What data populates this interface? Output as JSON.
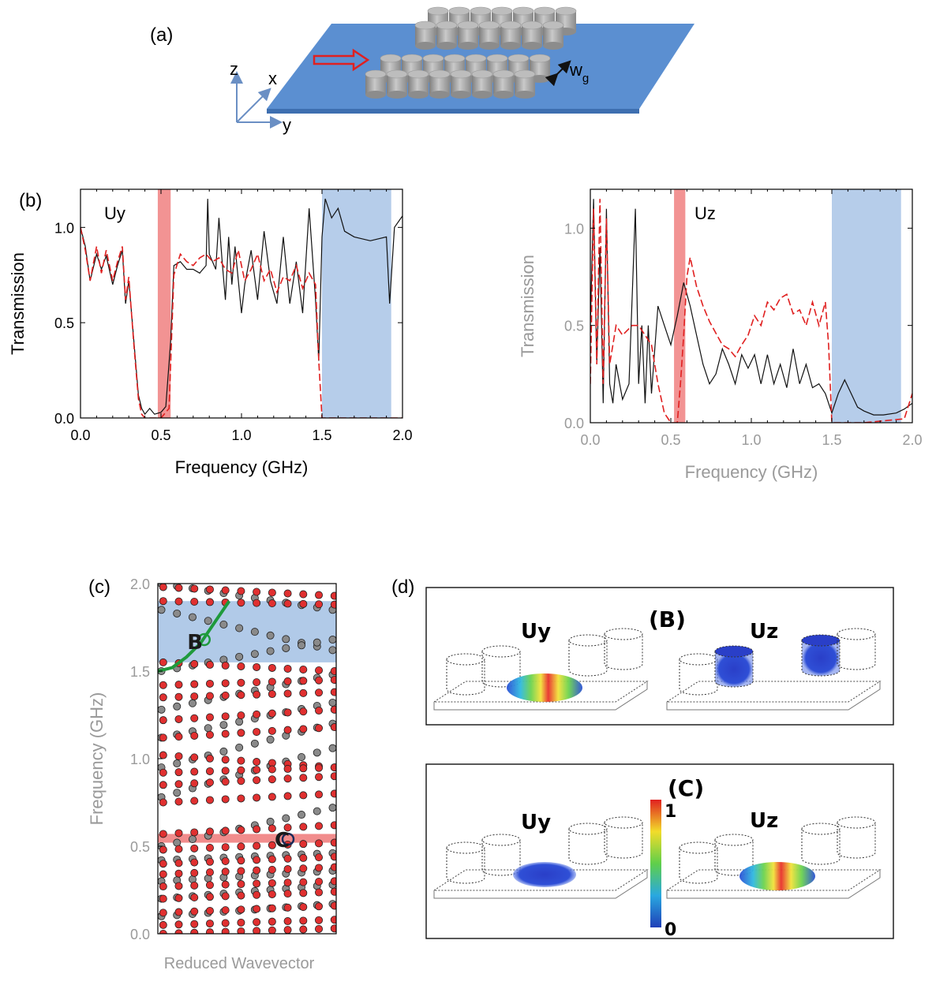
{
  "panel_labels": {
    "a": "(a)",
    "b": "(b)",
    "c": "(c)",
    "d": "(d)"
  },
  "schematic": {
    "axes": [
      "z",
      "x",
      "y"
    ],
    "gap_label": "w",
    "gap_subscript": "g"
  },
  "colors": {
    "substrate": "#5b8fd1",
    "pillar": "#a9a9a9",
    "pink_band": "#f08080",
    "blue_band": "#a9c4e6",
    "red_curve": "#e02020",
    "black_curve": "#111111",
    "green_curve": "#1f9a3c",
    "gray_text": "#9a9a9a"
  },
  "chart_data": [
    {
      "id": "uy",
      "type": "line",
      "annotation": "Uy",
      "xlabel": "Frequency (GHz)",
      "ylabel": "Transmission",
      "xlim": [
        0,
        2.0
      ],
      "ylim": [
        0,
        1.2
      ],
      "xticks": [
        "0.0",
        "0.5",
        "1.0",
        "1.5",
        "2.0"
      ],
      "yticks": [
        "0.0",
        "0.5",
        "1.0"
      ],
      "bands": [
        {
          "kind": "pink",
          "x0": 0.48,
          "x1": 0.56
        },
        {
          "kind": "blue",
          "x0": 1.5,
          "x1": 1.93
        }
      ],
      "series": [
        {
          "style": "black",
          "x": [
            0.0,
            0.03,
            0.06,
            0.1,
            0.13,
            0.16,
            0.2,
            0.23,
            0.26,
            0.28,
            0.3,
            0.33,
            0.36,
            0.38,
            0.4,
            0.43,
            0.46,
            0.5,
            0.53,
            0.56,
            0.58,
            0.62,
            0.66,
            0.7,
            0.74,
            0.78,
            0.79,
            0.8,
            0.84,
            0.86,
            0.88,
            0.9,
            0.92,
            0.94,
            0.96,
            1.0,
            1.02,
            1.06,
            1.1,
            1.14,
            1.18,
            1.22,
            1.26,
            1.3,
            1.34,
            1.38,
            1.42,
            1.46,
            1.48,
            1.5,
            1.52,
            1.56,
            1.6,
            1.64,
            1.7,
            1.8,
            1.9,
            1.92,
            1.95,
            2.0
          ],
          "y": [
            1.0,
            0.9,
            0.72,
            0.86,
            0.78,
            0.85,
            0.7,
            0.8,
            0.88,
            0.6,
            0.72,
            0.42,
            0.12,
            0.05,
            0.02,
            0.05,
            0.02,
            0.03,
            0.06,
            0.4,
            0.8,
            0.82,
            0.78,
            0.78,
            0.76,
            0.8,
            1.15,
            0.86,
            0.78,
            1.05,
            0.82,
            0.62,
            0.95,
            0.7,
            0.9,
            0.55,
            0.7,
            0.88,
            0.62,
            0.98,
            0.72,
            0.6,
            0.95,
            0.6,
            0.82,
            0.55,
            1.1,
            0.62,
            0.3,
            0.95,
            1.15,
            1.05,
            1.1,
            0.98,
            0.95,
            0.93,
            0.95,
            0.6,
            1.0,
            1.06
          ]
        },
        {
          "style": "red-dashed",
          "x": [
            0.0,
            0.03,
            0.06,
            0.1,
            0.13,
            0.16,
            0.2,
            0.23,
            0.26,
            0.28,
            0.3,
            0.33,
            0.36,
            0.38,
            0.4,
            0.45,
            0.5,
            0.55,
            0.58,
            0.62,
            0.66,
            0.7,
            0.74,
            0.78,
            0.82,
            0.86,
            0.9,
            0.94,
            0.98,
            1.02,
            1.06,
            1.1,
            1.14,
            1.18,
            1.22,
            1.26,
            1.3,
            1.34,
            1.38,
            1.42,
            1.46,
            1.48,
            1.5,
            1.6,
            1.8,
            2.0
          ],
          "y": [
            1.0,
            0.88,
            0.72,
            0.9,
            0.76,
            0.88,
            0.72,
            0.82,
            0.9,
            0.62,
            0.74,
            0.4,
            0.1,
            0.02,
            0.0,
            0.0,
            0.0,
            0.05,
            0.75,
            0.86,
            0.82,
            0.8,
            0.84,
            0.86,
            0.82,
            0.84,
            0.78,
            0.76,
            0.88,
            0.72,
            0.78,
            0.86,
            0.72,
            0.78,
            0.66,
            0.74,
            0.72,
            0.8,
            0.68,
            0.76,
            0.7,
            0.3,
            0.0,
            0.0,
            0.0,
            0.0
          ]
        }
      ]
    },
    {
      "id": "uz",
      "type": "line",
      "annotation": "Uz",
      "xlabel": "Frequency (GHz)",
      "ylabel": "Transmission",
      "xlim": [
        0,
        2.0
      ],
      "ylim": [
        0,
        1.2
      ],
      "xticks": [
        "0.0",
        "0.5",
        "1.0",
        "1.5",
        "2.0"
      ],
      "yticks": [
        "0.0",
        "0.5",
        "1.0"
      ],
      "bands": [
        {
          "kind": "pink",
          "x0": 0.52,
          "x1": 0.59
        },
        {
          "kind": "blue",
          "x0": 1.5,
          "x1": 1.93
        }
      ],
      "series": [
        {
          "style": "black",
          "x": [
            0.0,
            0.02,
            0.04,
            0.06,
            0.08,
            0.1,
            0.12,
            0.14,
            0.16,
            0.2,
            0.24,
            0.28,
            0.3,
            0.32,
            0.34,
            0.36,
            0.38,
            0.42,
            0.46,
            0.5,
            0.54,
            0.58,
            0.62,
            0.66,
            0.7,
            0.74,
            0.78,
            0.82,
            0.86,
            0.9,
            0.94,
            0.98,
            1.02,
            1.06,
            1.1,
            1.14,
            1.18,
            1.22,
            1.26,
            1.3,
            1.34,
            1.38,
            1.42,
            1.46,
            1.5,
            1.54,
            1.58,
            1.62,
            1.66,
            1.7,
            1.76,
            1.82,
            1.9,
            1.95,
            2.0
          ],
          "y": [
            0.5,
            1.15,
            0.3,
            0.9,
            0.1,
            1.1,
            0.2,
            0.1,
            0.3,
            0.12,
            0.2,
            1.1,
            0.2,
            0.5,
            0.1,
            0.5,
            0.15,
            0.6,
            0.5,
            0.4,
            0.55,
            0.72,
            0.6,
            0.45,
            0.3,
            0.2,
            0.25,
            0.38,
            0.3,
            0.2,
            0.35,
            0.28,
            0.35,
            0.2,
            0.35,
            0.2,
            0.3,
            0.18,
            0.38,
            0.2,
            0.3,
            0.18,
            0.2,
            0.15,
            0.05,
            0.15,
            0.22,
            0.15,
            0.08,
            0.06,
            0.04,
            0.04,
            0.05,
            0.07,
            0.1
          ]
        },
        {
          "style": "red-dashed",
          "x": [
            0.0,
            0.02,
            0.04,
            0.06,
            0.08,
            0.1,
            0.12,
            0.14,
            0.16,
            0.2,
            0.26,
            0.3,
            0.34,
            0.38,
            0.42,
            0.46,
            0.5,
            0.54,
            0.56,
            0.58,
            0.6,
            0.62,
            0.66,
            0.7,
            0.74,
            0.78,
            0.82,
            0.86,
            0.9,
            0.94,
            0.98,
            1.02,
            1.06,
            1.1,
            1.14,
            1.18,
            1.22,
            1.26,
            1.3,
            1.34,
            1.38,
            1.42,
            1.46,
            1.48,
            1.5,
            1.7,
            1.95,
            2.0
          ],
          "y": [
            0.2,
            1.1,
            0.3,
            1.15,
            0.2,
            1.05,
            0.3,
            0.4,
            0.5,
            0.45,
            0.5,
            0.5,
            0.45,
            0.4,
            0.2,
            0.05,
            0.0,
            0.0,
            0.2,
            0.45,
            0.75,
            0.85,
            0.7,
            0.6,
            0.52,
            0.46,
            0.4,
            0.38,
            0.34,
            0.4,
            0.45,
            0.55,
            0.5,
            0.62,
            0.58,
            0.64,
            0.66,
            0.56,
            0.58,
            0.5,
            0.62,
            0.5,
            0.62,
            0.4,
            0.0,
            0.0,
            0.02,
            0.15
          ]
        }
      ]
    },
    {
      "id": "band",
      "type": "scatter",
      "xlabel": "Reduced Wavevector",
      "ylabel": "Frequency (GHz)",
      "xlim": [
        0,
        1
      ],
      "ylim": [
        0,
        2.0
      ],
      "yticks": [
        "0.0",
        "0.5",
        "1.0",
        "1.5",
        "2.0"
      ],
      "bands": [
        {
          "kind": "blue",
          "y0": 1.55,
          "y1": 1.9
        },
        {
          "kind": "pink",
          "y0": 0.52,
          "y1": 0.57
        }
      ],
      "annotations": [
        {
          "text": "B",
          "x": 0.28,
          "y": 1.68
        },
        {
          "text": "C",
          "x": 0.77,
          "y": 0.55
        }
      ],
      "marked_points": [
        {
          "name": "B",
          "x": 0.26,
          "y": 1.68,
          "color": "#1f9a3c"
        },
        {
          "name": "C",
          "x": 0.73,
          "y": 0.54,
          "color": "#1a2a5a"
        }
      ],
      "green_curve": {
        "x": [
          0.0,
          0.08,
          0.16,
          0.24,
          0.32,
          0.4
        ],
        "y": [
          1.5,
          1.52,
          1.58,
          1.66,
          1.78,
          1.9
        ]
      },
      "black_bands": [
        {
          "y0": 2.0,
          "y1": 1.85
        },
        {
          "y0": 1.85,
          "y1": 1.62
        },
        {
          "y0": 1.5,
          "y1": 1.68
        },
        {
          "y0": 1.28,
          "y1": 1.48
        },
        {
          "y0": 1.12,
          "y1": 1.32
        },
        {
          "y0": 0.95,
          "y1": 1.2
        },
        {
          "y0": 0.78,
          "y1": 1.06
        },
        {
          "y0": 0.5,
          "y1": 0.72
        },
        {
          "y0": 0.42,
          "y1": 0.46
        },
        {
          "y0": 0.3,
          "y1": 0.36
        },
        {
          "y0": 0.2,
          "y1": 0.28
        },
        {
          "y0": 0.1,
          "y1": 0.17
        }
      ],
      "red_bands": [
        {
          "y0": 1.98,
          "y1": 1.93
        },
        {
          "y0": 1.9,
          "y1": 1.88
        },
        {
          "y0": 1.55,
          "y1": 1.5
        },
        {
          "y0": 1.42,
          "y1": 1.45
        },
        {
          "y0": 1.35,
          "y1": 1.38
        },
        {
          "y0": 1.22,
          "y1": 1.28
        },
        {
          "y0": 1.12,
          "y1": 1.18
        },
        {
          "y0": 1.02,
          "y1": 0.95
        },
        {
          "y0": 0.92,
          "y1": 0.95
        },
        {
          "y0": 0.85,
          "y1": 0.9
        },
        {
          "y0": 0.75,
          "y1": 0.8
        },
        {
          "y0": 0.57,
          "y1": 0.62
        },
        {
          "y0": 0.48,
          "y1": 0.52
        },
        {
          "y0": 0.4,
          "y1": 0.44
        },
        {
          "y0": 0.34,
          "y1": 0.38
        },
        {
          "y0": 0.27,
          "y1": 0.3
        },
        {
          "y0": 0.2,
          "y1": 0.24
        },
        {
          "y0": 0.12,
          "y1": 0.16
        },
        {
          "y0": 0.05,
          "y1": 0.08
        },
        {
          "y0": 0.0,
          "y1": 0.03
        }
      ]
    }
  ],
  "field_panels": [
    {
      "label": "(B)",
      "left": "Uy",
      "right": "Uz",
      "left_mode": "rainbow",
      "right_mode": "blue-pillars"
    },
    {
      "label": "(C)",
      "left": "Uy",
      "right": "Uz",
      "left_mode": "blue",
      "right_mode": "rainbow"
    }
  ],
  "colorbar": {
    "max": "1",
    "min": "0"
  }
}
